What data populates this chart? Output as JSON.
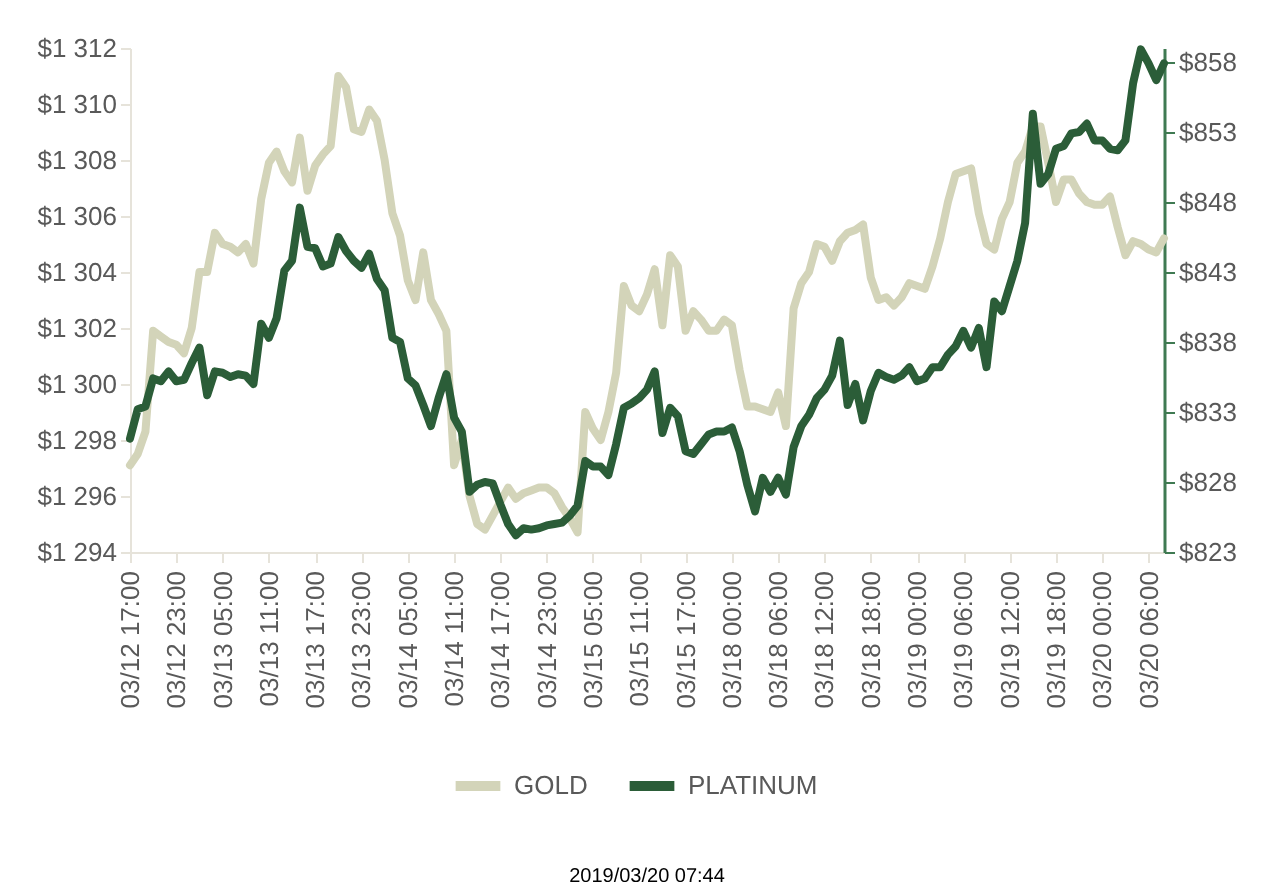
{
  "chart_data": {
    "type": "line",
    "categories": [
      "03/12 17:00",
      null,
      null,
      null,
      null,
      null,
      "03/12 23:00",
      null,
      null,
      null,
      null,
      null,
      "03/13 05:00",
      null,
      null,
      null,
      null,
      null,
      "03/13 11:00",
      null,
      null,
      null,
      null,
      null,
      "03/13 17:00",
      null,
      null,
      null,
      null,
      null,
      "03/13 23:00",
      null,
      null,
      null,
      null,
      null,
      "03/14 05:00",
      null,
      null,
      null,
      null,
      null,
      "03/14 11:00",
      null,
      null,
      null,
      null,
      null,
      "03/14 17:00",
      null,
      null,
      null,
      null,
      null,
      "03/14 23:00",
      null,
      null,
      null,
      null,
      null,
      "03/15 05:00",
      null,
      null,
      null,
      null,
      null,
      "03/15 11:00",
      null,
      null,
      null,
      null,
      null,
      "03/15 17:00",
      null,
      null,
      null,
      null,
      null,
      "03/18 00:00",
      null,
      null,
      null,
      null,
      null,
      "03/18 06:00",
      null,
      null,
      null,
      null,
      null,
      "03/18 12:00",
      null,
      null,
      null,
      null,
      null,
      "03/18 18:00",
      null,
      null,
      null,
      null,
      null,
      "03/19 00:00",
      null,
      null,
      null,
      null,
      null,
      "03/19 06:00",
      null,
      null,
      null,
      null,
      null,
      "03/19 12:00",
      null,
      null,
      null,
      null,
      null,
      "03/19 18:00",
      null,
      null,
      null,
      null,
      null,
      "03/20 00:00",
      null,
      null,
      null,
      null,
      null,
      "03/20 06:00",
      null,
      null
    ],
    "series": [
      {
        "name": "GOLD",
        "color": "#d3d4b9",
        "values": [
          1297.1,
          1297.5,
          1298.3,
          1301.9,
          1301.7,
          1301.5,
          1301.4,
          1301.1,
          1302.0,
          1304.0,
          1304.0,
          1305.4,
          1305.0,
          1304.9,
          1304.7,
          1305.0,
          1304.3,
          1306.6,
          1307.9,
          1308.3,
          1307.6,
          1307.2,
          1308.8,
          1306.9,
          1307.8,
          1308.2,
          1308.5,
          1311.0,
          1310.6,
          1309.1,
          1309.0,
          1309.8,
          1309.4,
          1308.0,
          1306.1,
          1305.3,
          1303.7,
          1303.0,
          1304.7,
          1303.0,
          1302.5,
          1301.9,
          1297.1,
          1298.0,
          1296.0,
          1295.0,
          1294.8,
          1295.3,
          1295.8,
          1296.3,
          1295.9,
          1296.1,
          1296.2,
          1296.3,
          1296.3,
          1296.1,
          1295.6,
          1295.2,
          1294.7,
          1299.0,
          1298.4,
          1298.0,
          1299.0,
          1300.4,
          1303.5,
          1302.8,
          1302.6,
          1303.2,
          1304.1,
          1302.1,
          1304.6,
          1304.2,
          1301.9,
          1302.6,
          1302.3,
          1301.9,
          1301.9,
          1302.3,
          1302.1,
          1300.5,
          1299.2,
          1299.2,
          1299.1,
          1299.0,
          1299.7,
          1298.5,
          1302.7,
          1303.6,
          1304.0,
          1305.0,
          1304.9,
          1304.4,
          1305.1,
          1305.4,
          1305.5,
          1305.7,
          1303.8,
          1303.0,
          1303.1,
          1302.8,
          1303.1,
          1303.6,
          1303.5,
          1303.4,
          1304.2,
          1305.2,
          1306.5,
          1307.5,
          1307.6,
          1307.7,
          1306.1,
          1305.0,
          1304.8,
          1305.9,
          1306.5,
          1307.9,
          1308.3,
          1309.2,
          1309.2,
          1307.9,
          1306.5,
          1307.3,
          1307.3,
          1306.8,
          1306.5,
          1306.4,
          1306.4,
          1306.7,
          1305.6,
          1304.6,
          1305.1,
          1305.0,
          1304.8,
          1304.7,
          1305.2
        ]
      },
      {
        "name": "PLATINUM",
        "color": "#2b5d38",
        "axis": "y2",
        "values": [
          831.1,
          833.2,
          833.4,
          835.4,
          835.2,
          835.9,
          835.2,
          835.3,
          836.5,
          837.6,
          834.2,
          835.9,
          835.8,
          835.5,
          835.7,
          835.6,
          835.0,
          839.3,
          838.3,
          839.7,
          843.1,
          843.8,
          847.6,
          844.8,
          844.7,
          843.4,
          843.6,
          845.5,
          844.5,
          843.8,
          843.3,
          844.3,
          842.5,
          841.7,
          838.3,
          838.0,
          835.4,
          834.9,
          833.5,
          832.0,
          834.0,
          835.7,
          832.6,
          831.6,
          827.3,
          827.8,
          828.0,
          827.9,
          826.4,
          825.0,
          824.2,
          824.7,
          824.6,
          824.7,
          824.9,
          825.0,
          825.1,
          825.6,
          826.3,
          829.5,
          829.1,
          829.1,
          828.5,
          830.7,
          833.3,
          833.6,
          834.0,
          834.6,
          835.9,
          831.5,
          833.3,
          832.7,
          830.2,
          830.0,
          830.7,
          831.4,
          831.6,
          831.6,
          831.9,
          830.2,
          827.8,
          825.9,
          828.3,
          827.3,
          828.3,
          827.1,
          830.5,
          832.0,
          832.8,
          834.0,
          834.6,
          835.6,
          838.1,
          833.5,
          835.0,
          832.4,
          834.5,
          835.8,
          835.5,
          835.3,
          835.6,
          836.2,
          835.2,
          835.4,
          836.2,
          836.2,
          837.1,
          837.7,
          838.8,
          837.6,
          839.0,
          836.2,
          840.9,
          840.2,
          842.0,
          843.8,
          846.5,
          854.3,
          849.3,
          850.0,
          851.8,
          852.0,
          852.9,
          853.0,
          853.6,
          852.4,
          852.4,
          851.8,
          851.7,
          852.4,
          856.5,
          858.9,
          857.9,
          856.7,
          857.9
        ]
      }
    ],
    "ylim": [
      1294,
      1312
    ],
    "yticks": [
      {
        "value": 1294,
        "label": "$1 294"
      },
      {
        "value": 1296,
        "label": "$1 296"
      },
      {
        "value": 1298,
        "label": "$1 298"
      },
      {
        "value": 1300,
        "label": "$1 300"
      },
      {
        "value": 1302,
        "label": "$1 302"
      },
      {
        "value": 1304,
        "label": "$1 304"
      },
      {
        "value": 1306,
        "label": "$1 306"
      },
      {
        "value": 1308,
        "label": "$1 308"
      },
      {
        "value": 1310,
        "label": "$1 310"
      },
      {
        "value": 1312,
        "label": "$1 312"
      }
    ],
    "y2lim": [
      823,
      859
    ],
    "y2ticks": [
      {
        "value": 823,
        "label": "$823"
      },
      {
        "value": 828,
        "label": "$828"
      },
      {
        "value": 833,
        "label": "$833"
      },
      {
        "value": 838,
        "label": "$838"
      },
      {
        "value": 843,
        "label": "$843"
      },
      {
        "value": 848,
        "label": "$848"
      },
      {
        "value": 853,
        "label": "$853"
      },
      {
        "value": 858,
        "label": "$858"
      }
    ],
    "legend": "bottom",
    "grid": false,
    "marker": "none",
    "line_style": "solid",
    "annotations": [
      "2019/03/20 07:44"
    ]
  }
}
